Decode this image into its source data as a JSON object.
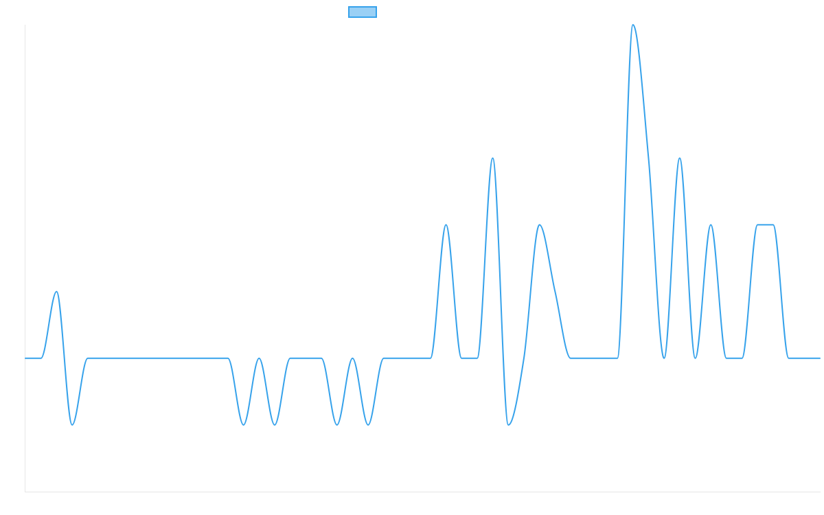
{
  "chart_data": {
    "type": "line",
    "title": "",
    "xlabel": "",
    "ylabel": "",
    "grid": false,
    "legend_placement": "top-center",
    "ylim": [
      -2,
      5
    ],
    "x": [
      0,
      1,
      2,
      3,
      4,
      5,
      6,
      7,
      8,
      9,
      10,
      11,
      12,
      13,
      14,
      15,
      16,
      17,
      18,
      19,
      20,
      21,
      22,
      23,
      24,
      25,
      26,
      27,
      28,
      29,
      30,
      31,
      32,
      33,
      34,
      35,
      36,
      37,
      38,
      39,
      40,
      41,
      42,
      43,
      44,
      45,
      46,
      47,
      48,
      49,
      50,
      51
    ],
    "series": [
      {
        "name": "",
        "color": "#36a2eb",
        "fill_color": "#9ad0f5",
        "values": [
          0,
          0,
          1,
          -1,
          0,
          0,
          0,
          0,
          0,
          0,
          0,
          0,
          0,
          0,
          -1,
          0,
          -1,
          0,
          0,
          0,
          -1,
          0,
          -1,
          0,
          0,
          0,
          0,
          2,
          0,
          0,
          3,
          -1,
          0,
          2,
          1,
          0,
          0,
          0,
          0,
          5,
          3,
          0,
          3,
          0,
          2,
          0,
          0,
          2,
          2,
          0,
          0,
          0
        ]
      }
    ]
  }
}
